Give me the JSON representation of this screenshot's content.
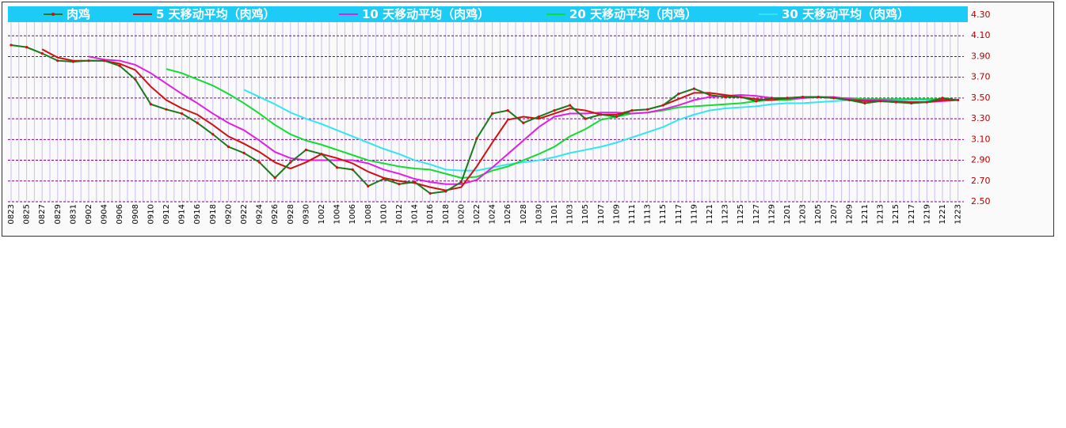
{
  "chart_data": {
    "type": "line",
    "categories": [
      "0823",
      "0825",
      "0827",
      "0829",
      "0831",
      "0902",
      "0904",
      "0906",
      "0908",
      "0910",
      "0912",
      "0914",
      "0916",
      "0918",
      "0920",
      "0922",
      "0924",
      "0926",
      "0928",
      "0930",
      "1002",
      "1004",
      "1006",
      "1008",
      "1010",
      "1012",
      "1014",
      "1016",
      "1018",
      "1020",
      "1022",
      "1024",
      "1026",
      "1028",
      "1030",
      "1101",
      "1103",
      "1105",
      "1107",
      "1109",
      "1111",
      "1113",
      "1115",
      "1117",
      "1119",
      "1121",
      "1123",
      "1125",
      "1127",
      "1129",
      "1201",
      "1203",
      "1205",
      "1207",
      "1209",
      "1211",
      "1213",
      "1215",
      "1217",
      "1219",
      "1221",
      "1223"
    ],
    "series": [
      {
        "name": "肉鸡",
        "color": "#1a7a1a",
        "marker": true,
        "values": [
          4.01,
          3.99,
          3.93,
          3.86,
          3.85,
          3.86,
          3.86,
          3.81,
          3.68,
          3.44,
          3.39,
          3.35,
          3.26,
          3.15,
          3.03,
          2.97,
          2.88,
          2.73,
          2.88,
          3.0,
          2.96,
          2.83,
          2.81,
          2.65,
          2.72,
          2.67,
          2.69,
          2.58,
          2.6,
          2.69,
          3.11,
          3.35,
          3.38,
          3.26,
          3.32,
          3.38,
          3.43,
          3.3,
          3.34,
          3.32,
          3.38,
          3.39,
          3.43,
          3.54,
          3.59,
          3.53,
          3.51,
          3.51,
          3.47,
          3.5,
          3.5,
          3.51,
          3.51,
          3.5,
          3.48,
          3.45,
          3.47,
          3.46,
          3.45,
          3.46,
          3.5,
          3.48
        ]
      },
      {
        "name": "5 天移动平均（肉鸡）",
        "color": "#d01010",
        "values": [
          null,
          null,
          3.97,
          3.89,
          3.86,
          3.86,
          3.86,
          3.83,
          3.77,
          3.61,
          3.48,
          3.4,
          3.34,
          3.24,
          3.13,
          3.06,
          2.98,
          2.88,
          2.82,
          2.88,
          2.96,
          2.92,
          2.87,
          2.79,
          2.73,
          2.7,
          2.68,
          2.64,
          2.61,
          2.64,
          2.84,
          3.07,
          3.29,
          3.32,
          3.3,
          3.35,
          3.4,
          3.38,
          3.34,
          3.34,
          3.38,
          3.39,
          3.43,
          3.49,
          3.55,
          3.55,
          3.53,
          3.51,
          3.49,
          3.48,
          3.5,
          3.51,
          3.51,
          3.5,
          3.48,
          3.47,
          3.47,
          3.46,
          3.46,
          3.46,
          3.48,
          3.48
        ]
      },
      {
        "name": "10 天移动平均（肉鸡）",
        "color": "#e020e0",
        "values": [
          null,
          null,
          null,
          null,
          null,
          3.9,
          3.87,
          3.86,
          3.82,
          3.74,
          3.64,
          3.54,
          3.45,
          3.35,
          3.26,
          3.19,
          3.09,
          2.98,
          2.92,
          2.9,
          2.9,
          2.9,
          2.9,
          2.87,
          2.81,
          2.77,
          2.72,
          2.69,
          2.67,
          2.67,
          2.71,
          2.83,
          2.96,
          3.09,
          3.22,
          3.32,
          3.35,
          3.35,
          3.36,
          3.36,
          3.35,
          3.36,
          3.39,
          3.43,
          3.48,
          3.51,
          3.52,
          3.53,
          3.52,
          3.5,
          3.49,
          3.5,
          3.51,
          3.51,
          3.49,
          3.48,
          3.48,
          3.47,
          3.46,
          3.46,
          3.47,
          3.48
        ]
      },
      {
        "name": "20 天移动平均（肉鸡）",
        "color": "#10dd30",
        "values": [
          null,
          null,
          null,
          null,
          null,
          null,
          null,
          null,
          null,
          null,
          3.78,
          3.74,
          3.68,
          3.62,
          3.54,
          3.45,
          3.35,
          3.24,
          3.15,
          3.09,
          3.05,
          3.0,
          2.95,
          2.9,
          2.87,
          2.84,
          2.82,
          2.81,
          2.77,
          2.73,
          2.74,
          2.8,
          2.84,
          2.9,
          2.96,
          3.03,
          3.13,
          3.2,
          3.29,
          3.32,
          3.35,
          3.36,
          3.38,
          3.41,
          3.42,
          3.43,
          3.44,
          3.45,
          3.47,
          3.48,
          3.48,
          3.5,
          3.51,
          3.5,
          3.5,
          3.49,
          3.49,
          3.49,
          3.49,
          3.49,
          3.49,
          3.48
        ]
      },
      {
        "name": "30 天移动平均（肉鸡）",
        "color": "#30e6f0",
        "values": [
          null,
          null,
          null,
          null,
          null,
          null,
          null,
          null,
          null,
          null,
          null,
          null,
          null,
          null,
          null,
          3.58,
          3.51,
          3.44,
          3.36,
          3.3,
          3.25,
          3.19,
          3.13,
          3.07,
          3.01,
          2.96,
          2.9,
          2.86,
          2.81,
          2.8,
          2.8,
          2.83,
          2.86,
          2.88,
          2.9,
          2.93,
          2.97,
          3.0,
          3.03,
          3.07,
          3.12,
          3.17,
          3.22,
          3.29,
          3.34,
          3.38,
          3.4,
          3.41,
          3.42,
          3.44,
          3.45,
          3.45,
          3.46,
          3.47,
          3.48,
          3.48,
          3.48,
          3.48,
          3.48,
          3.48,
          3.48,
          3.48
        ]
      }
    ],
    "ylim": [
      2.5,
      4.3
    ],
    "yticks": [
      {
        "value": 4.3,
        "label": "4.30"
      },
      {
        "value": 4.1,
        "label": "4.10"
      },
      {
        "value": 3.9,
        "label": "3.90"
      },
      {
        "value": 3.7,
        "label": "3.70"
      },
      {
        "value": 3.5,
        "label": "3.50"
      },
      {
        "value": 3.3,
        "label": "3.30"
      },
      {
        "value": 3.1,
        "label": "3.10"
      },
      {
        "value": 2.9,
        "label": "2.90"
      },
      {
        "value": 2.7,
        "label": "2.70"
      },
      {
        "value": 2.5,
        "label": "2.50"
      }
    ],
    "grid": true,
    "legend": "top",
    "legend_color": "#1ccbf6"
  }
}
